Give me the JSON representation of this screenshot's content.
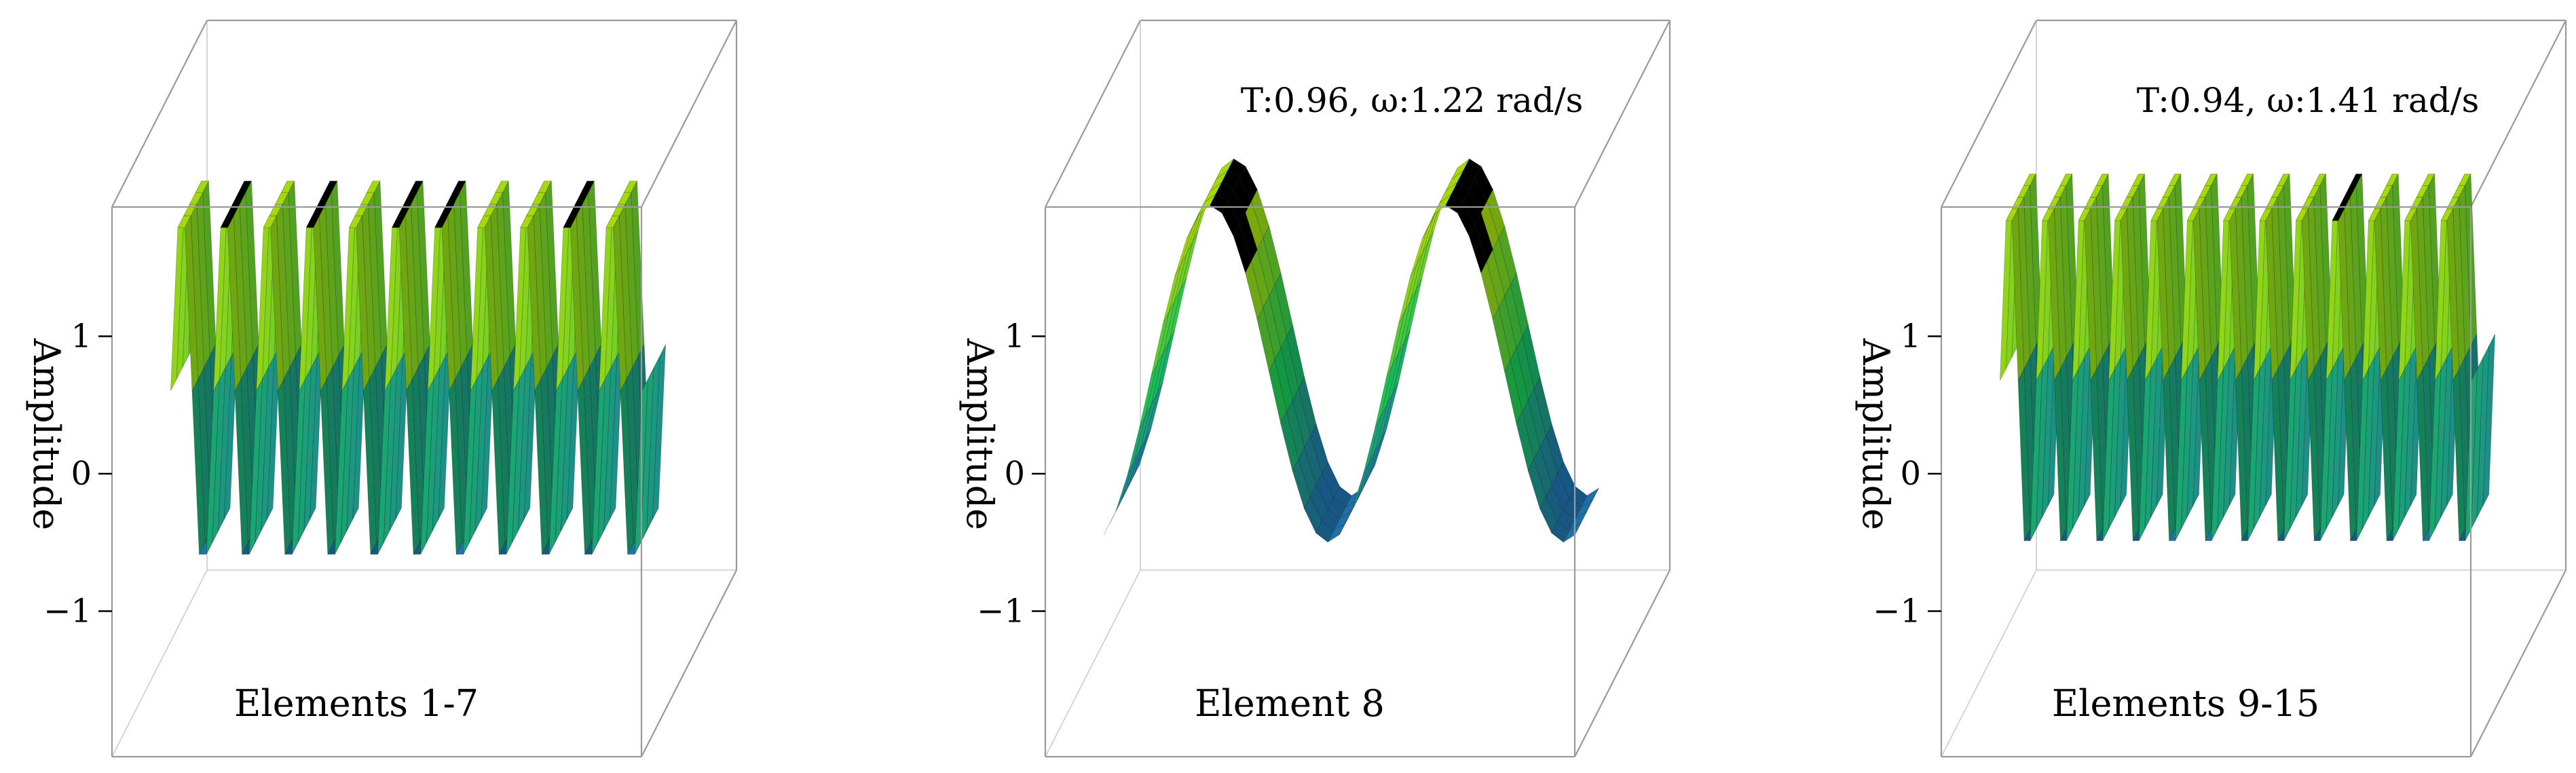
{
  "chart_data": [
    {
      "type": "surface3d",
      "caption": "Elements 1-7",
      "annotation": "",
      "ylabel": "Amplitude",
      "zticks": [
        -1,
        0,
        1
      ],
      "zlim": [
        -2,
        2
      ],
      "waves": 11,
      "amplitude_range": [
        -1.2,
        1.3
      ],
      "colors": {
        "low": "#1f6fa8",
        "mid": "#19c254",
        "high": "#a6d90c",
        "peak": "#b88a00"
      }
    },
    {
      "type": "surface3d",
      "caption": "Element 8",
      "annotation": "T:0.96, ω:1.22 rad/s",
      "ylabel": "Amplitude",
      "zticks": [
        -1,
        0,
        1
      ],
      "zlim": [
        -2,
        2
      ],
      "waves": 2,
      "amplitude_range": [
        -1.05,
        1.4
      ],
      "colors": {
        "low": "#1f6fa8",
        "mid": "#19c254",
        "high": "#a6d90c",
        "peak": "#b88a00"
      }
    },
    {
      "type": "surface3d",
      "caption": "Elements 9-15",
      "annotation": "T:0.94, ω:1.41 rad/s",
      "ylabel": "Amplitude",
      "zticks": [
        -1,
        0,
        1
      ],
      "zlim": [
        -2,
        2
      ],
      "waves": 13,
      "amplitude_range": [
        -1.1,
        1.35
      ],
      "colors": {
        "low": "#1f6fa8",
        "mid": "#19c254",
        "high": "#a6d90c",
        "peak": "#b88a00"
      }
    }
  ]
}
